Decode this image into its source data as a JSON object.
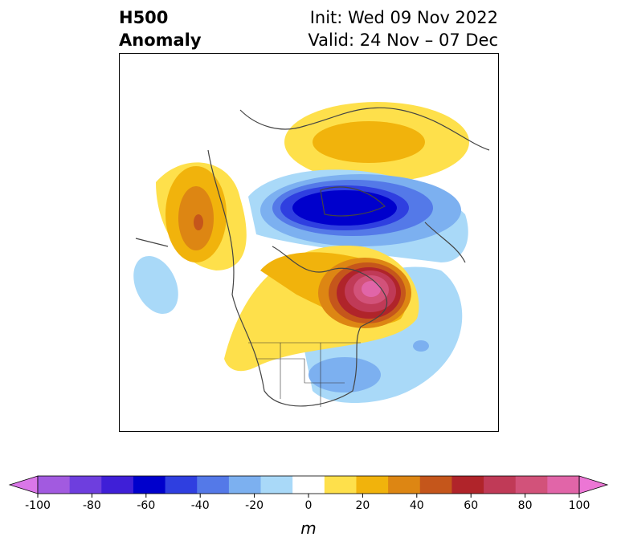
{
  "header": {
    "title_line1": "H500",
    "title_line2": "Anomaly",
    "init": "Init: Wed 09 Nov 2022",
    "valid": "Valid: 24 Nov – 07 Dec"
  },
  "colorbar": {
    "ticks": [
      "-100",
      "-80",
      "-60",
      "-40",
      "-20",
      "0",
      "20",
      "40",
      "60",
      "80",
      "100"
    ],
    "units": "m",
    "colors": [
      "#da77e8",
      "#a25ae0",
      "#6e3ede",
      "#3f1fd7",
      "#0000cc",
      "#2f3fe0",
      "#5479e8",
      "#7cb0f0",
      "#a9d9f8",
      "#ffffff",
      "#fee04b",
      "#f1b30c",
      "#dd8613",
      "#c5561b",
      "#b0242a",
      "#c03a57",
      "#d2527a",
      "#e165a8",
      "#ec76d5"
    ]
  },
  "map_features": {
    "ridge_alaska": "warm",
    "trough_arctic": "cold",
    "ridge_northeast_canada": "warm",
    "ridge_siberia": "warm",
    "trough_east_us": "cold"
  }
}
